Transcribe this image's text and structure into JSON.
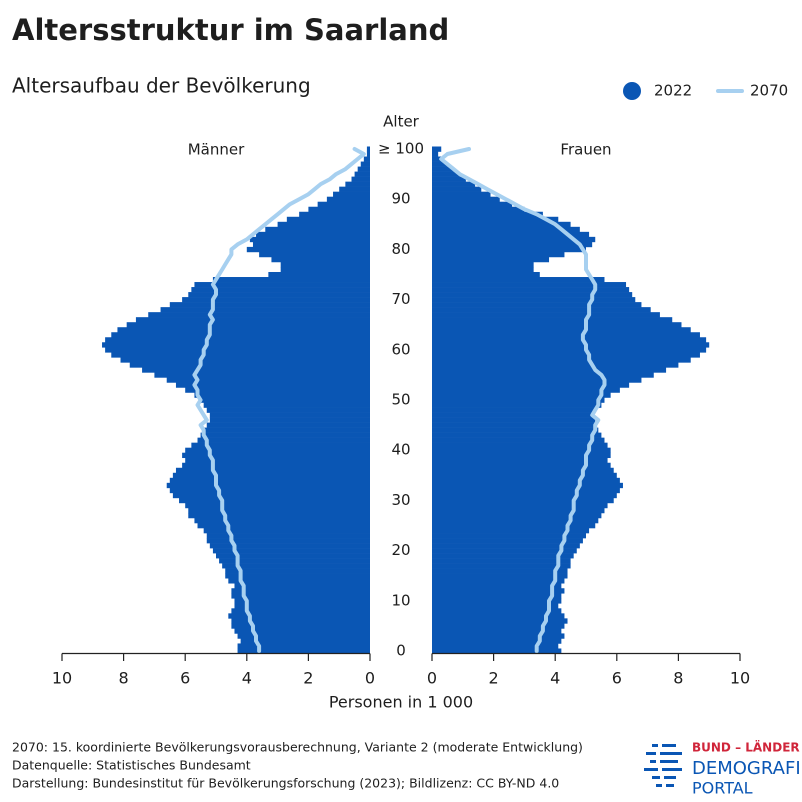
{
  "chart_data": {
    "type": "pyramid",
    "title": "Altersstruktur im Saarland",
    "subtitle": "Altersaufbau der Bevölkerung",
    "ylabel": "Alter",
    "xlabel": "Personen in 1 000",
    "y": [
      0,
      1,
      2,
      3,
      4,
      5,
      6,
      7,
      8,
      9,
      10,
      11,
      12,
      13,
      14,
      15,
      16,
      17,
      18,
      19,
      20,
      21,
      22,
      23,
      24,
      25,
      26,
      27,
      28,
      29,
      30,
      31,
      32,
      33,
      34,
      35,
      36,
      37,
      38,
      39,
      40,
      41,
      42,
      43,
      44,
      45,
      46,
      47,
      48,
      49,
      50,
      51,
      52,
      53,
      54,
      55,
      56,
      57,
      58,
      59,
      60,
      61,
      62,
      63,
      64,
      65,
      66,
      67,
      68,
      69,
      70,
      71,
      72,
      73,
      74,
      75,
      76,
      77,
      78,
      79,
      80,
      81,
      82,
      83,
      84,
      85,
      86,
      87,
      88,
      89,
      90,
      91,
      92,
      93,
      94,
      95,
      96,
      97,
      98,
      99,
      100
    ],
    "ylim": [
      -0.5,
      100.5
    ],
    "yticks": [
      0,
      10,
      20,
      30,
      40,
      50,
      60,
      70,
      80,
      90,
      {
        "value": 100,
        "label": "≥ 100"
      }
    ],
    "xlim": [
      0,
      10
    ],
    "xticks": [
      0,
      2,
      4,
      6,
      8,
      10
    ],
    "series": [
      {
        "name": "2022",
        "color": "#0a56b4",
        "style": "bar"
      },
      {
        "name": "2070",
        "color": "#a7d0f0",
        "style": "line"
      }
    ],
    "panels": [
      {
        "label": "Männer",
        "side": "left",
        "values": [
          [
            4.3,
            4.3,
            4.2,
            4.3,
            4.4,
            4.5,
            4.5,
            4.6,
            4.5,
            4.4,
            4.4,
            4.5,
            4.5,
            4.4,
            4.6,
            4.7,
            4.7,
            4.8,
            4.9,
            5.0,
            5.1,
            5.2,
            5.3,
            5.3,
            5.4,
            5.6,
            5.7,
            5.9,
            5.9,
            6.0,
            6.2,
            6.4,
            6.5,
            6.6,
            6.5,
            6.4,
            6.3,
            6.1,
            6.0,
            6.1,
            6.0,
            5.8,
            5.6,
            5.5,
            5.4,
            5.3,
            5.2,
            5.2,
            5.3,
            5.4,
            5.5,
            5.7,
            6.0,
            6.3,
            6.6,
            7.0,
            7.4,
            7.8,
            8.1,
            8.4,
            8.6,
            8.7,
            8.6,
            8.4,
            8.2,
            7.9,
            7.6,
            7.2,
            6.8,
            6.5,
            6.1,
            5.9,
            5.8,
            5.7,
            5.1,
            3.3,
            2.9,
            2.9,
            3.2,
            3.6,
            4.0,
            3.8,
            3.9,
            3.7,
            3.4,
            3.0,
            2.7,
            2.3,
            2.0,
            1.7,
            1.4,
            1.2,
            1.0,
            0.8,
            0.6,
            0.5,
            0.4,
            0.3,
            0.2,
            0.1,
            0.1
          ],
          [
            3.6,
            3.6,
            3.7,
            3.7,
            3.8,
            3.8,
            3.9,
            3.9,
            4.0,
            4.0,
            4.0,
            4.1,
            4.1,
            4.1,
            4.2,
            4.2,
            4.2,
            4.3,
            4.3,
            4.3,
            4.4,
            4.4,
            4.5,
            4.5,
            4.6,
            4.6,
            4.7,
            4.7,
            4.8,
            4.8,
            4.8,
            4.9,
            4.9,
            5.0,
            5.0,
            5.0,
            5.1,
            5.1,
            5.1,
            5.2,
            5.2,
            5.3,
            5.3,
            5.4,
            5.4,
            5.5,
            5.3,
            5.4,
            5.5,
            5.6,
            5.5,
            5.6,
            5.6,
            5.7,
            5.6,
            5.7,
            5.6,
            5.5,
            5.5,
            5.4,
            5.4,
            5.3,
            5.3,
            5.2,
            5.2,
            5.2,
            5.1,
            5.2,
            5.1,
            5.1,
            5.1,
            5.0,
            5.0,
            5.1,
            5.0,
            4.9,
            4.8,
            4.7,
            4.6,
            4.5,
            4.5,
            4.3,
            4.0,
            3.8,
            3.6,
            3.4,
            3.2,
            3.0,
            2.8,
            2.6,
            2.3,
            2.0,
            1.8,
            1.6,
            1.3,
            1.1,
            0.8,
            0.6,
            0.4,
            0.2,
            0.5
          ]
        ]
      },
      {
        "label": "Frauen",
        "side": "right",
        "values": [
          [
            4.2,
            4.1,
            4.2,
            4.3,
            4.2,
            4.3,
            4.4,
            4.3,
            4.2,
            4.1,
            4.2,
            4.2,
            4.3,
            4.2,
            4.3,
            4.4,
            4.4,
            4.5,
            4.5,
            4.6,
            4.7,
            4.8,
            4.9,
            5.0,
            5.1,
            5.3,
            5.4,
            5.5,
            5.6,
            5.7,
            5.9,
            6.0,
            6.1,
            6.2,
            6.1,
            6.0,
            5.9,
            5.8,
            5.7,
            5.8,
            5.8,
            5.7,
            5.6,
            5.5,
            5.4,
            5.3,
            5.3,
            5.2,
            5.3,
            5.5,
            5.6,
            5.8,
            6.1,
            6.4,
            6.8,
            7.2,
            7.6,
            8.0,
            8.4,
            8.7,
            8.9,
            9.0,
            8.9,
            8.7,
            8.4,
            8.1,
            7.8,
            7.4,
            7.1,
            6.8,
            6.6,
            6.5,
            6.4,
            6.3,
            5.6,
            3.5,
            3.3,
            3.3,
            3.8,
            4.3,
            5.0,
            5.2,
            5.3,
            5.1,
            4.8,
            4.5,
            4.1,
            3.6,
            3.0,
            2.6,
            2.2,
            1.9,
            1.6,
            1.4,
            1.1,
            0.9,
            0.7,
            0.5,
            0.3,
            0.2,
            0.3
          ],
          [
            3.4,
            3.4,
            3.5,
            3.5,
            3.6,
            3.6,
            3.7,
            3.7,
            3.8,
            3.8,
            3.8,
            3.9,
            3.9,
            3.9,
            4.0,
            4.0,
            4.0,
            4.1,
            4.1,
            4.1,
            4.2,
            4.2,
            4.3,
            4.3,
            4.4,
            4.4,
            4.5,
            4.5,
            4.6,
            4.6,
            4.6,
            4.7,
            4.7,
            4.8,
            4.8,
            4.9,
            4.9,
            5.0,
            5.0,
            5.0,
            5.1,
            5.1,
            5.2,
            5.2,
            5.3,
            5.3,
            5.4,
            5.2,
            5.3,
            5.4,
            5.4,
            5.5,
            5.5,
            5.6,
            5.6,
            5.5,
            5.3,
            5.2,
            5.1,
            5.1,
            5.0,
            5.0,
            4.9,
            4.9,
            5.0,
            5.0,
            5.0,
            5.1,
            5.1,
            5.1,
            5.2,
            5.2,
            5.3,
            5.3,
            5.2,
            5.1,
            5.0,
            5.0,
            5.0,
            5.0,
            4.9,
            4.8,
            4.6,
            4.4,
            4.2,
            4.0,
            3.7,
            3.4,
            3.0,
            2.7,
            2.4,
            2.1,
            1.8,
            1.5,
            1.2,
            0.9,
            0.7,
            0.5,
            0.3,
            0.5,
            1.2
          ]
        ]
      }
    ]
  },
  "footer": {
    "notes": [
      "2070: 15. koordinierte Bevölkerungsvorausberechnung, Variante 2 (moderate Entwicklung)",
      "Datenquelle: Statistisches Bundesamt",
      "Darstellung: Bundesinstitut für Bevölkerungsforschung (2023); Bildlizenz: CC BY-ND 4.0"
    ],
    "logo": [
      "BUND – LÄNDER",
      "DEMOGRAFIE",
      "PORTAL"
    ]
  }
}
